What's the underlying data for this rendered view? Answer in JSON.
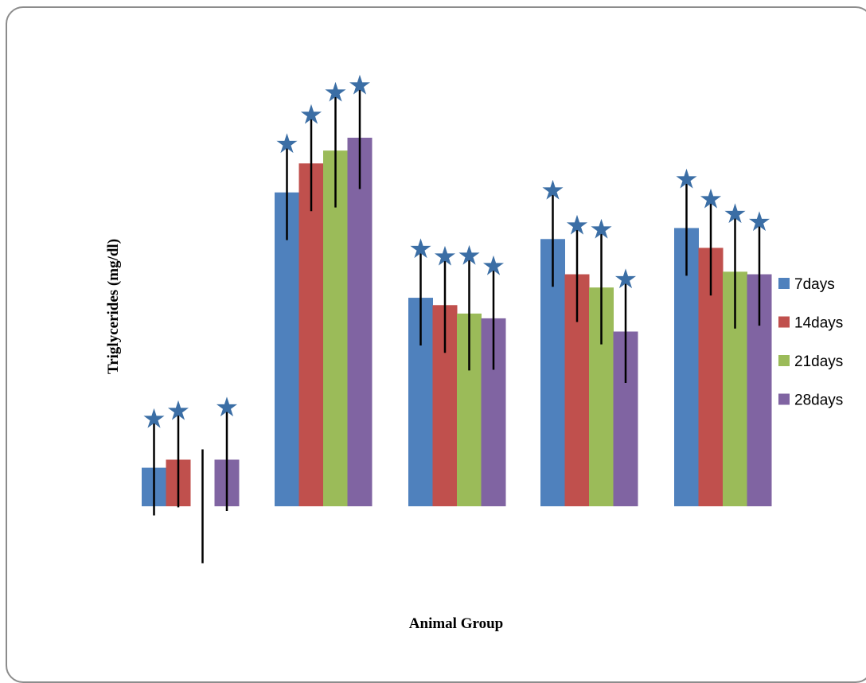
{
  "chart_data": {
    "type": "bar",
    "title": "",
    "xlabel": "Animal Group",
    "ylabel": "Triglycerides (mg/dl)",
    "ylim": [
      0,
      100
    ],
    "grid": false,
    "legend_position": "right",
    "categories": [
      "",
      "",
      "",
      "",
      ""
    ],
    "series": [
      {
        "name": "7days",
        "color": "#4f81bd",
        "values": [
          10.5,
          85.5,
          56.8,
          72.8,
          75.8
        ],
        "error": [
          13.0,
          13.0,
          13.0,
          13.0,
          13.0
        ],
        "significant": [
          true,
          true,
          true,
          true,
          true
        ]
      },
      {
        "name": "14days",
        "color": "#c0504d",
        "values": [
          12.7,
          93.4,
          54.8,
          63.2,
          70.4
        ],
        "error": [
          13.0,
          13.0,
          13.0,
          13.0,
          13.0
        ],
        "significant": [
          true,
          true,
          true,
          true,
          true
        ]
      },
      {
        "name": "21days",
        "color": "#9bbb59",
        "values": [
          0.0,
          96.9,
          52.5,
          59.6,
          63.9
        ],
        "error": [
          15.5,
          15.5,
          15.5,
          15.5,
          15.5
        ],
        "significant": [
          false,
          true,
          true,
          true,
          true
        ]
      },
      {
        "name": "28days",
        "color": "#8064a2",
        "values": [
          12.7,
          100.4,
          51.2,
          47.6,
          63.2
        ],
        "error": [
          14.0,
          14.0,
          14.0,
          14.0,
          14.0
        ],
        "significant": [
          true,
          true,
          true,
          true,
          true
        ]
      }
    ],
    "significance_marker": "★",
    "significance_color": "#3b6ea5"
  }
}
